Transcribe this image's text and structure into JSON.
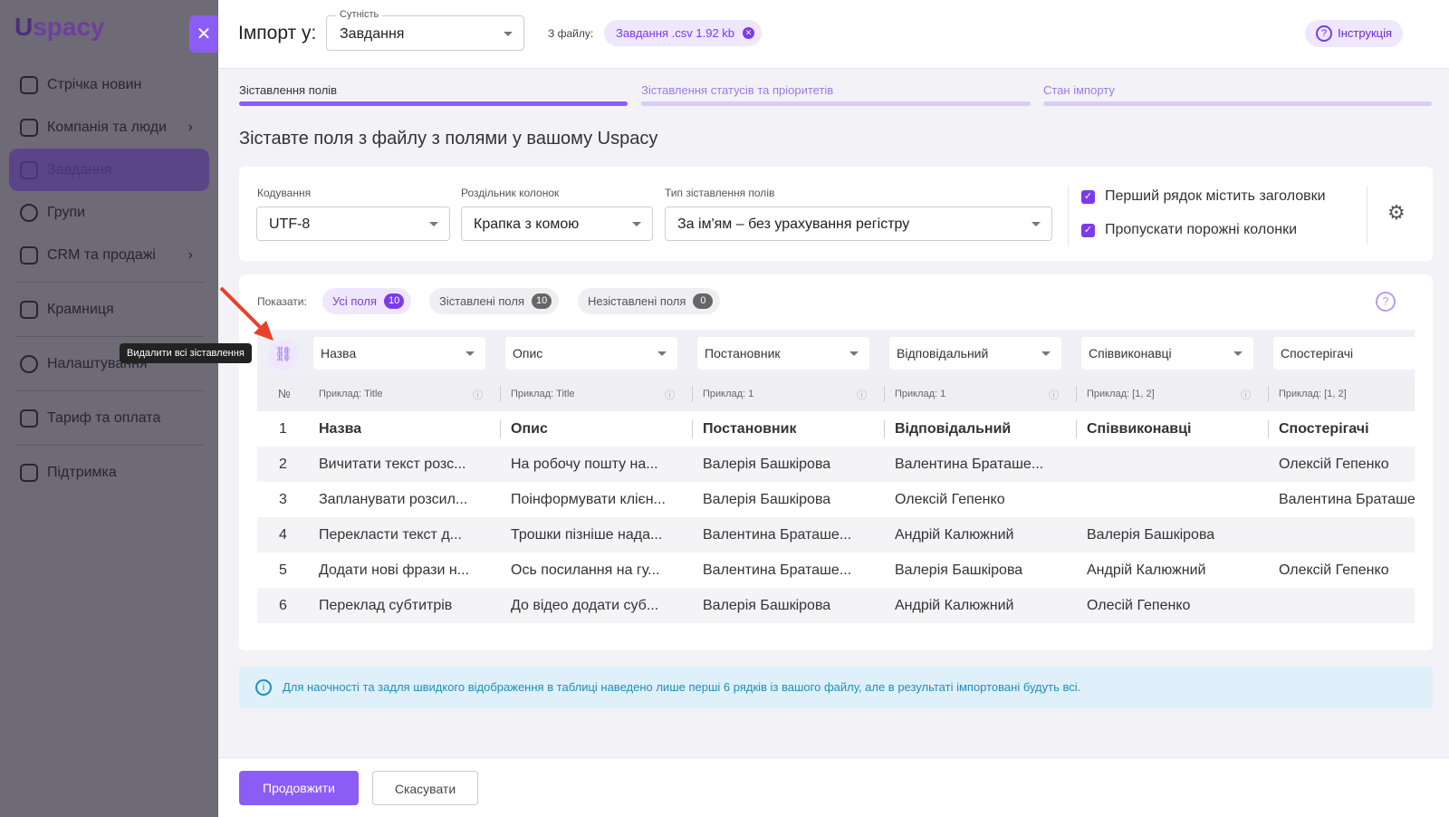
{
  "sidebar": {
    "logo": "Uspacy",
    "items": [
      {
        "label": "Стрічка новин"
      },
      {
        "label": "Компанія та люди"
      },
      {
        "label": "Завдання"
      },
      {
        "label": "Групи"
      },
      {
        "label": "CRM та продажі"
      },
      {
        "label": "Крамниця"
      },
      {
        "label": "Налаштування"
      },
      {
        "label": "Тариф та оплата"
      },
      {
        "label": "Підтримка"
      }
    ]
  },
  "header": {
    "title": "Імпорт у:",
    "entity_label": "Сутність",
    "entity_value": "Завдання",
    "file_label": "З файлу:",
    "file_chip": "Завдання .csv 1.92 kb",
    "instruction": "Інструкція"
  },
  "steps": [
    {
      "label": "Зіставлення полів",
      "active": true
    },
    {
      "label": "Зіставлення статусів та пріоритетів"
    },
    {
      "label": "Стан імпорту"
    }
  ],
  "page_title": "Зіставте поля з файлу з полями у вашому Uspacy",
  "settings": {
    "encoding_label": "Кодування",
    "encoding": "UTF-8",
    "delimiter_label": "Роздільник колонок",
    "delimiter": "Крапка з комою",
    "match_label": "Тип зіставлення полів",
    "match": "За ім'ям – без урахування регістру",
    "first_row": "Перший рядок містить заголовки",
    "skip_empty": "Пропускати порожні колонки"
  },
  "filters": {
    "label": "Показати:",
    "all": "Усі поля",
    "all_count": "10",
    "mapped": "Зіставлені поля",
    "mapped_count": "10",
    "unmapped": "Незіставлені поля",
    "unmapped_count": "0"
  },
  "tooltip": "Видалити всі зіставлення",
  "table": {
    "mapping": [
      "Назва",
      "Опис",
      "Постановник",
      "Відповідальний",
      "Співвиконавці",
      "Спостерігачі"
    ],
    "num_header": "№",
    "examples": [
      "Приклад: Title",
      "Приклад: Title",
      "Приклад: 1",
      "Приклад: 1",
      "Приклад: [1, 2]",
      "Приклад: [1, 2]"
    ],
    "rows": [
      [
        "1",
        "Назва",
        "Опис",
        "Постановник",
        "Відповідальний",
        "Співвиконавці",
        "Спостерігачі"
      ],
      [
        "2",
        "Вичитати текст розс...",
        "На робочу пошту на...",
        "Валерія Башкірова",
        "Валентина Браташе...",
        "",
        "Олексій Гепенко"
      ],
      [
        "3",
        "Запланувати розсил...",
        "Поінформувати клієн...",
        "Валерія Башкірова",
        "Олексій Гепенко",
        "",
        "Валентина Браташе"
      ],
      [
        "4",
        "Перекласти текст д...",
        "Трошки пізніше нада...",
        "Валентина Браташе...",
        "Андрій Калюжний",
        "Валерія Башкірова",
        ""
      ],
      [
        "5",
        "Додати нові фрази н...",
        "Ось посилання на гу...",
        "Валентина Браташе...",
        "Валерія Башкірова",
        "Андрій Калюжний",
        "Олексій Гепенко"
      ],
      [
        "6",
        "Переклад субтитрів",
        "До відео додати суб...",
        "Валерія Башкірова",
        "Андрій Калюжний",
        "Олесій Гепенко",
        ""
      ]
    ]
  },
  "info": "Для наочності та задля швидкого відображення в таблиці наведено лише перші 6 рядків із вашого файлу, але в результаті імпортовані будуть всі.",
  "footer": {
    "continue": "Продовжити",
    "cancel": "Скасувати"
  },
  "colors": {
    "accent": "#7c3aed",
    "info": "#1e8fb8"
  }
}
